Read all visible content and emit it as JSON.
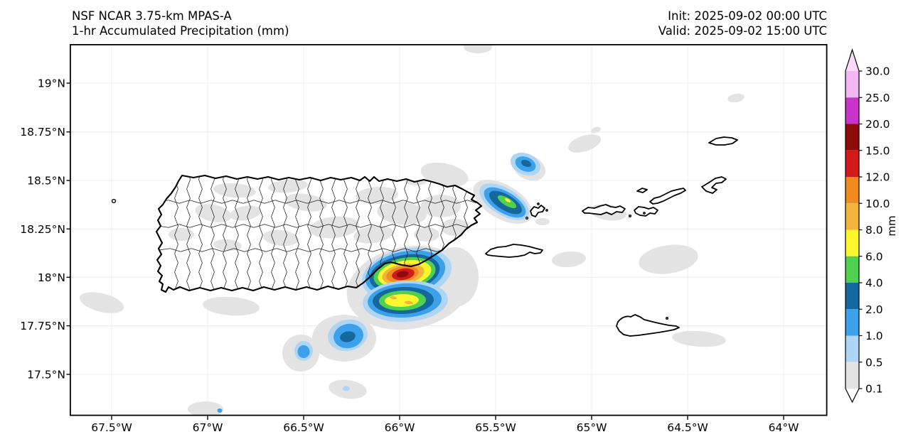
{
  "header": {
    "title_line1": "NSF NCAR 3.75-km MPAS-A",
    "title_line2": "1-hr Accumulated Precipitation (mm)",
    "init_label": "Init: 2025-09-02 00:00 UTC",
    "valid_label": "Valid: 2025-09-02 15:00 UTC"
  },
  "axes": {
    "x": [
      "67.5°W",
      "67°W",
      "66.5°W",
      "66°W",
      "65.5°W",
      "65°W",
      "64.5°W",
      "64°W"
    ],
    "y": [
      "19°N",
      "18.75°N",
      "18.5°N",
      "18.25°N",
      "18°N",
      "17.75°N",
      "17.5°N"
    ]
  },
  "colorbar": {
    "unit": "mm",
    "ticks": [
      "30.0",
      "25.0",
      "20.0",
      "15.0",
      "12.0",
      "10.0",
      "8.0",
      "6.0",
      "4.0",
      "2.0",
      "1.0",
      "0.5",
      "0.1"
    ]
  },
  "palette": {
    "under": "#ffffff",
    "c0_1": "#e3e3e3",
    "c0_5": "#aed5f3",
    "c1": "#3da0ea",
    "c2": "#15689e",
    "c4": "#4fd14f",
    "c6": "#fbf62e",
    "c8": "#f3b33c",
    "c10": "#ee8c20",
    "c12": "#d11a1a",
    "c15": "#8e0b0b",
    "c20": "#c935c9",
    "c25": "#f2b6f2",
    "over": "#fadcfa"
  },
  "chart_data": {
    "type": "heatmap",
    "title": "NSF NCAR 3.75-km MPAS-A",
    "subtitle": "1-hr Accumulated Precipitation (mm)",
    "init_time": "2025-09-02 00:00 UTC",
    "valid_time": "2025-09-02 15:00 UTC",
    "region": "Puerto Rico and Virgin Islands",
    "x_tick_labels": [
      "67.5°W",
      "67°W",
      "66.5°W",
      "66°W",
      "65.5°W",
      "65°W",
      "64.5°W",
      "64°W"
    ],
    "y_tick_labels": [
      "19°N",
      "18.75°N",
      "18.5°N",
      "18.25°N",
      "18°N",
      "17.75°N",
      "17.5°N"
    ],
    "xlim_lon_west_to_east": [
      -67.72,
      -63.77
    ],
    "ylim_lat_south_to_north": [
      17.29,
      19.2
    ],
    "grid": true,
    "colorbar": {
      "label": "mm",
      "orientation": "vertical-right",
      "levels_mm": [
        0.1,
        0.5,
        1.0,
        2.0,
        4.0,
        6.0,
        8.0,
        10.0,
        12.0,
        15.0,
        20.0,
        25.0,
        30.0
      ],
      "extend": "both",
      "segment_colors_low_to_high": [
        "#e3e3e3",
        "#aed5f3",
        "#3da0ea",
        "#15689e",
        "#4fd14f",
        "#fbf62e",
        "#f3b33c",
        "#ee8c20",
        "#d11a1a",
        "#8e0b0b",
        "#c935c9",
        "#f2b6f2"
      ],
      "under_color": "#ffffff",
      "over_color": "#fadcfa"
    },
    "features": [
      {
        "name": "intense convective cell on southeast Puerto Rico coast",
        "lon": "66.0°W",
        "lat": "18.0°N",
        "peak_band_mm": "15-20"
      },
      {
        "name": "strong cell just offshore south of Puerto Rico",
        "lon": "66.0°W",
        "lat": "17.88°N",
        "peak_band_mm": "8-10"
      },
      {
        "name": "cell offshore southwest",
        "lon": "66.27°W",
        "lat": "17.70°N",
        "peak_band_mm": "2-4"
      },
      {
        "name": "weak cell offshore southwest",
        "lon": "66.5°W",
        "lat": "17.62°N",
        "peak_band_mm": "1-2"
      },
      {
        "name": "elongated cell near Culebra",
        "lon": "65.45°W",
        "lat": "18.39°N",
        "peak_band_mm": "6-8"
      },
      {
        "name": "small cell north of Culebra",
        "lon": "65.35°W",
        "lat": "18.58°N",
        "peak_band_mm": "2-4"
      },
      {
        "name": "scattered light precipitation patches over and around the islands",
        "peak_band_mm": "0.1-0.5"
      }
    ],
    "geography_outlines": [
      "Puerto Rico with municipality boundaries",
      "Desecheo",
      "Vieques",
      "Culebra",
      "St. Thomas",
      "St. John",
      "Jost Van Dyke",
      "Tortola",
      "Virgin Gorda",
      "Anegada",
      "St. Croix"
    ]
  }
}
